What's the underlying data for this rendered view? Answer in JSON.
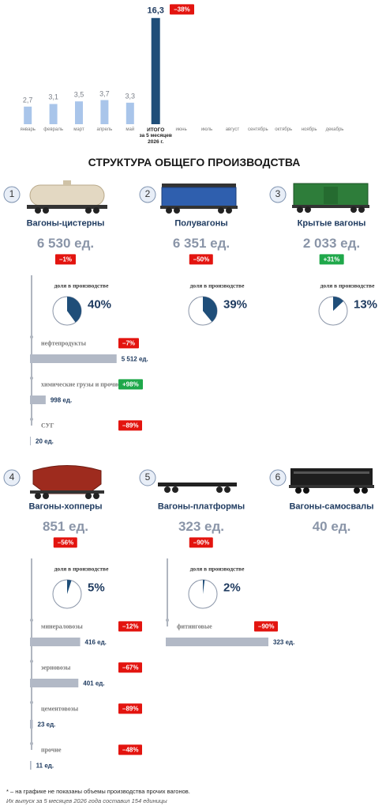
{
  "chart_data": {
    "type": "bar",
    "categories": [
      "январь",
      "февраль",
      "март",
      "апрель",
      "май",
      "ИТОГО\nза 5 месяцев\n2026 г.",
      "июнь",
      "июль",
      "август",
      "сентябрь",
      "октябрь",
      "ноябрь",
      "декабрь"
    ],
    "values": [
      2.7,
      3.1,
      3.5,
      3.7,
      3.3,
      16.3,
      null,
      null,
      null,
      null,
      null,
      null,
      null
    ],
    "value_labels": [
      "2,7",
      "3,1",
      "3,5",
      "3,7",
      "3,3",
      "16,3",
      null,
      null,
      null,
      null,
      null,
      null,
      null
    ],
    "color": "#a9c5ea",
    "total_color": "#1f4e79",
    "total_index": 5,
    "ylim": [
      0,
      17
    ],
    "badge": "–38%"
  },
  "structure": {
    "title": "СТРУКТУРА ОБЩЕГО ПРОИЗВОДСТВА",
    "share_label": "доля в производстве",
    "cards": [
      {
        "number": 1,
        "name": "Вагоны-цистерны",
        "count": {
          "value": 6530,
          "label": "6 530 ед."
        },
        "change": "–1%",
        "share": {
          "value": 40,
          "label": "40%"
        },
        "items": [
          {
            "name": "нефтепродукты",
            "value": 5512,
            "label": "5 512 ед.",
            "change": "–7%"
          },
          {
            "name": "химические грузы и прочие",
            "value": 998,
            "label": "998 ед.",
            "change": "+98%"
          },
          {
            "name": "СУГ",
            "value": 20,
            "label": "20 ед.",
            "change": "–89%"
          }
        ]
      },
      {
        "number": 2,
        "name": "Полувагоны",
        "count": {
          "value": 6351,
          "label": "6 351 ед."
        },
        "change": "–50%",
        "share": {
          "value": 39,
          "label": "39%"
        },
        "items": []
      },
      {
        "number": 3,
        "name": "Крытые вагоны",
        "count": {
          "value": 2033,
          "label": "2 033 ед."
        },
        "change": "+31%",
        "share": {
          "value": 13,
          "label": "13%"
        },
        "items": []
      },
      {
        "number": 4,
        "name": "Вагоны-хопперы",
        "count": {
          "value": 851,
          "label": "851 ед."
        },
        "change": "–56%",
        "share": {
          "value": 5,
          "label": "5%"
        },
        "items": [
          {
            "name": "минераловозы",
            "value": 416,
            "label": "416 ед.",
            "change": "–12%"
          },
          {
            "name": "зерновозы",
            "value": 401,
            "label": "401 ед.",
            "change": "–67%"
          },
          {
            "name": "цементовозы",
            "value": 23,
            "label": "23 ед.",
            "change": "–89%"
          },
          {
            "name": "прочие",
            "value": 11,
            "label": "11 ед.",
            "change": "–48%"
          }
        ]
      },
      {
        "number": 5,
        "name": "Вагоны-платформы",
        "count": {
          "value": 323,
          "label": "323 ед."
        },
        "change": "–90%",
        "share": {
          "value": 2,
          "label": "2%"
        },
        "items": [
          {
            "name": "фитинговые",
            "value": 323,
            "label": "323 ед.",
            "change": "–90%"
          }
        ]
      },
      {
        "number": 6,
        "name": "Вагоны-самосвалы",
        "count": {
          "value": 40,
          "label": "40 ед."
        },
        "change": null,
        "share": null,
        "items": []
      }
    ]
  },
  "footnote": {
    "line1": "* – на графике не показаны объемы производства прочих вагонов.",
    "line2": "Их выпуск за 5 месяцев 2026 года составил 154 единицы"
  }
}
